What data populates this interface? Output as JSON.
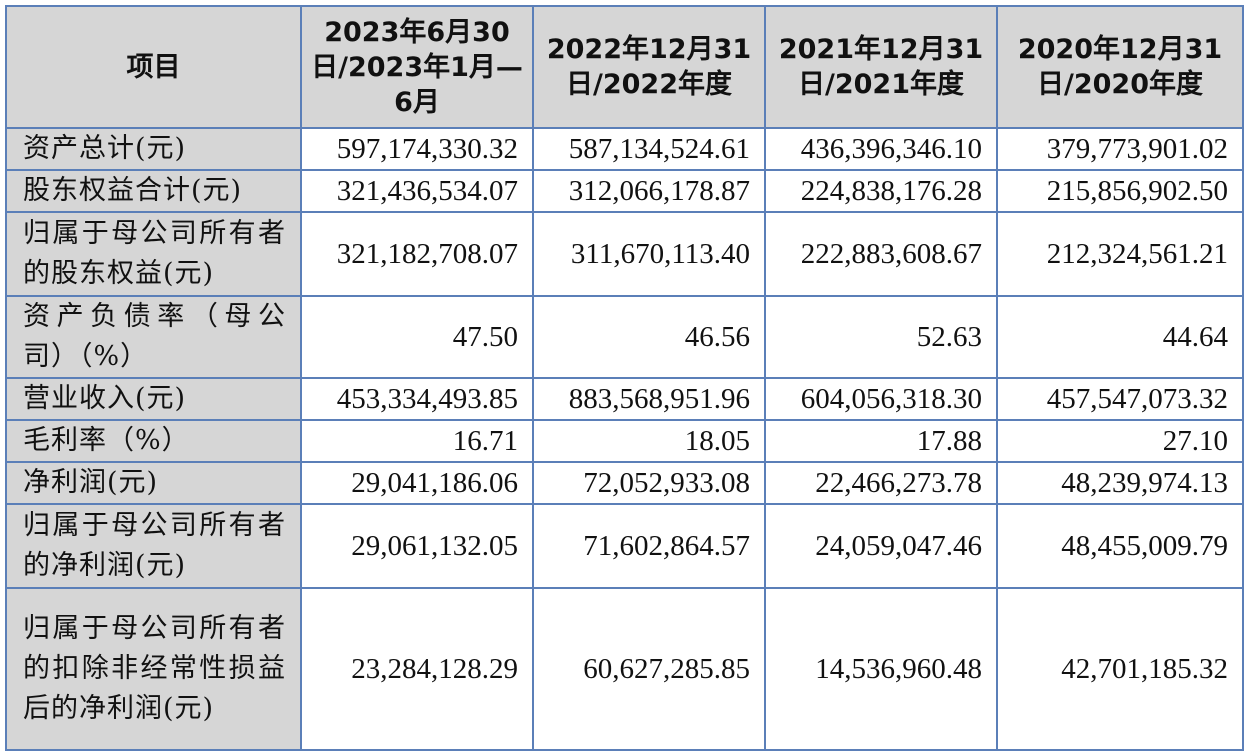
{
  "table": {
    "headers": {
      "item": "项目",
      "col1": "2023年6月30日/2023年1月—6月",
      "col2": "2022年12月31日/2022年度",
      "col3": "2021年12月31日/2021年度",
      "col4": "2020年12月31日/2020年度"
    },
    "rows": [
      {
        "label": "资产总计(元)",
        "v1": "597,174,330.32",
        "v2": "587,134,524.61",
        "v3": "436,396,346.10",
        "v4": "379,773,901.02"
      },
      {
        "label": "股东权益合计(元)",
        "v1": "321,436,534.07",
        "v2": "312,066,178.87",
        "v3": "224,838,176.28",
        "v4": "215,856,902.50"
      },
      {
        "label": "归属于母公司所有者的股东权益(元)",
        "v1": "321,182,708.07",
        "v2": "311,670,113.40",
        "v3": "222,883,608.67",
        "v4": "212,324,561.21"
      },
      {
        "label": "资产负债率（母公司）（%）",
        "v1": "47.50",
        "v2": "46.56",
        "v3": "52.63",
        "v4": "44.64"
      },
      {
        "label": "营业收入(元)",
        "v1": "453,334,493.85",
        "v2": "883,568,951.96",
        "v3": "604,056,318.30",
        "v4": "457,547,073.32"
      },
      {
        "label": "毛利率（%）",
        "v1": "16.71",
        "v2": "18.05",
        "v3": "17.88",
        "v4": "27.10"
      },
      {
        "label": "净利润(元)",
        "v1": "29,041,186.06",
        "v2": "72,052,933.08",
        "v3": "22,466,273.78",
        "v4": "48,239,974.13"
      },
      {
        "label": "归属于母公司所有者的净利润(元)",
        "v1": "29,061,132.05",
        "v2": "71,602,864.57",
        "v3": "24,059,047.46",
        "v4": "48,455,009.79"
      },
      {
        "label": "归属于母公司所有者的扣除非经常性损益后的净利润(元)",
        "v1": "23,284,128.29",
        "v2": "60,627,285.85",
        "v3": "14,536,960.48",
        "v4": "42,701,185.32"
      }
    ]
  }
}
